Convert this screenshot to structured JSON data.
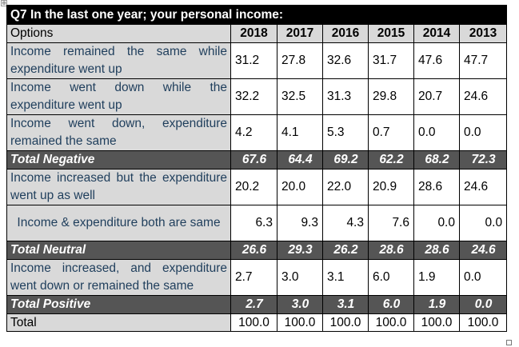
{
  "title": "Q7 In the last one year; your personal income:",
  "header": {
    "options_label": "Options",
    "years": [
      "2018",
      "2017",
      "2016",
      "2015",
      "2014",
      "2013"
    ]
  },
  "rows": [
    {
      "label": "Income remained the same while expenditure went up",
      "values": [
        "31.2",
        "27.8",
        "32.6",
        "31.7",
        "47.6",
        "47.7"
      ]
    },
    {
      "label": "Income went down while the expenditure went up",
      "values": [
        "32.2",
        "32.5",
        "31.3",
        "29.8",
        "20.7",
        "24.6"
      ]
    },
    {
      "label": "Income went down, expenditure remained the same",
      "values": [
        "4.2",
        "4.1",
        "5.3",
        "0.7",
        "0.0",
        "0.0"
      ]
    },
    {
      "label": "Total Negative",
      "values": [
        "67.6",
        "64.4",
        "69.2",
        "62.2",
        "68.2",
        "72.3"
      ]
    },
    {
      "label": "Income increased but the expenditure went up as well",
      "values": [
        "20.2",
        "20.0",
        "22.0",
        "20.9",
        "28.6",
        "24.6"
      ]
    },
    {
      "label": "Income & expenditure both are same",
      "values": [
        "6.3",
        "9.3",
        "4.3",
        "7.6",
        "0.0",
        "0.0"
      ]
    },
    {
      "label": "Total Neutral",
      "values": [
        "26.6",
        "29.3",
        "26.2",
        "28.6",
        "28.6",
        "24.6"
      ]
    },
    {
      "label": "Income increased, and expenditure went down or remained the same",
      "values": [
        "2.7",
        "3.0",
        "3.1",
        "6.0",
        "1.9",
        "0.0"
      ]
    },
    {
      "label": "Total Positive",
      "values": [
        "2.7",
        "3.0",
        "3.1",
        "6.0",
        "1.9",
        "0.0"
      ]
    },
    {
      "label": "Total",
      "values": [
        "100.0",
        "100.0",
        "100.0",
        "100.0",
        "100.0",
        "100.0"
      ]
    }
  ],
  "anchor_glyph": "⊕"
}
